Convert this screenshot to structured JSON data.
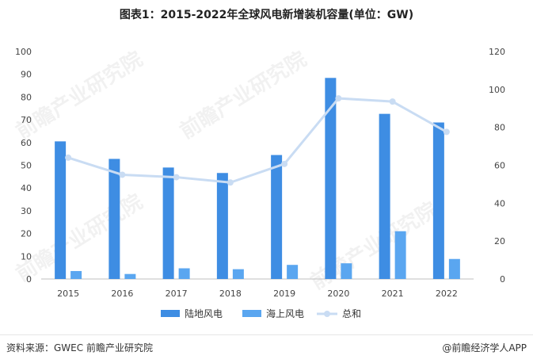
{
  "title": "图表1：2015-2022年全球风电新增装机容量(单位：GW)",
  "watermark": "前瞻产业研究院",
  "source": "资料来源：GWEC 前瞻产业研究院",
  "credit": "@前瞻经济学人APP",
  "colors": {
    "onshore": "#3e8de3",
    "offshore": "#5aa6f0",
    "total": "#c9dcf3"
  },
  "chart_data": {
    "type": "bar",
    "categories": [
      "2015",
      "2016",
      "2017",
      "2018",
      "2019",
      "2020",
      "2021",
      "2022"
    ],
    "series": [
      {
        "name": "陆地风电",
        "type": "bar",
        "axis": "left",
        "values": [
          60.5,
          52.8,
          49.0,
          46.6,
          54.5,
          88.4,
          72.6,
          68.8
        ]
      },
      {
        "name": "海上风电",
        "type": "bar",
        "axis": "left",
        "values": [
          3.5,
          2.2,
          4.7,
          4.3,
          6.2,
          6.9,
          21.0,
          8.8
        ]
      },
      {
        "name": "总和",
        "type": "line",
        "axis": "right",
        "values": [
          64,
          55,
          53.7,
          50.9,
          60.7,
          95.3,
          93.6,
          77.6
        ]
      }
    ],
    "y_left": {
      "min": 0,
      "max": 100,
      "ticks": [
        0,
        10,
        20,
        30,
        40,
        50,
        60,
        70,
        80,
        90,
        100
      ]
    },
    "y_right": {
      "min": 0,
      "max": 120,
      "ticks": [
        0,
        20,
        40,
        60,
        80,
        100,
        120
      ]
    },
    "grid": false,
    "legend_position": "bottom"
  }
}
